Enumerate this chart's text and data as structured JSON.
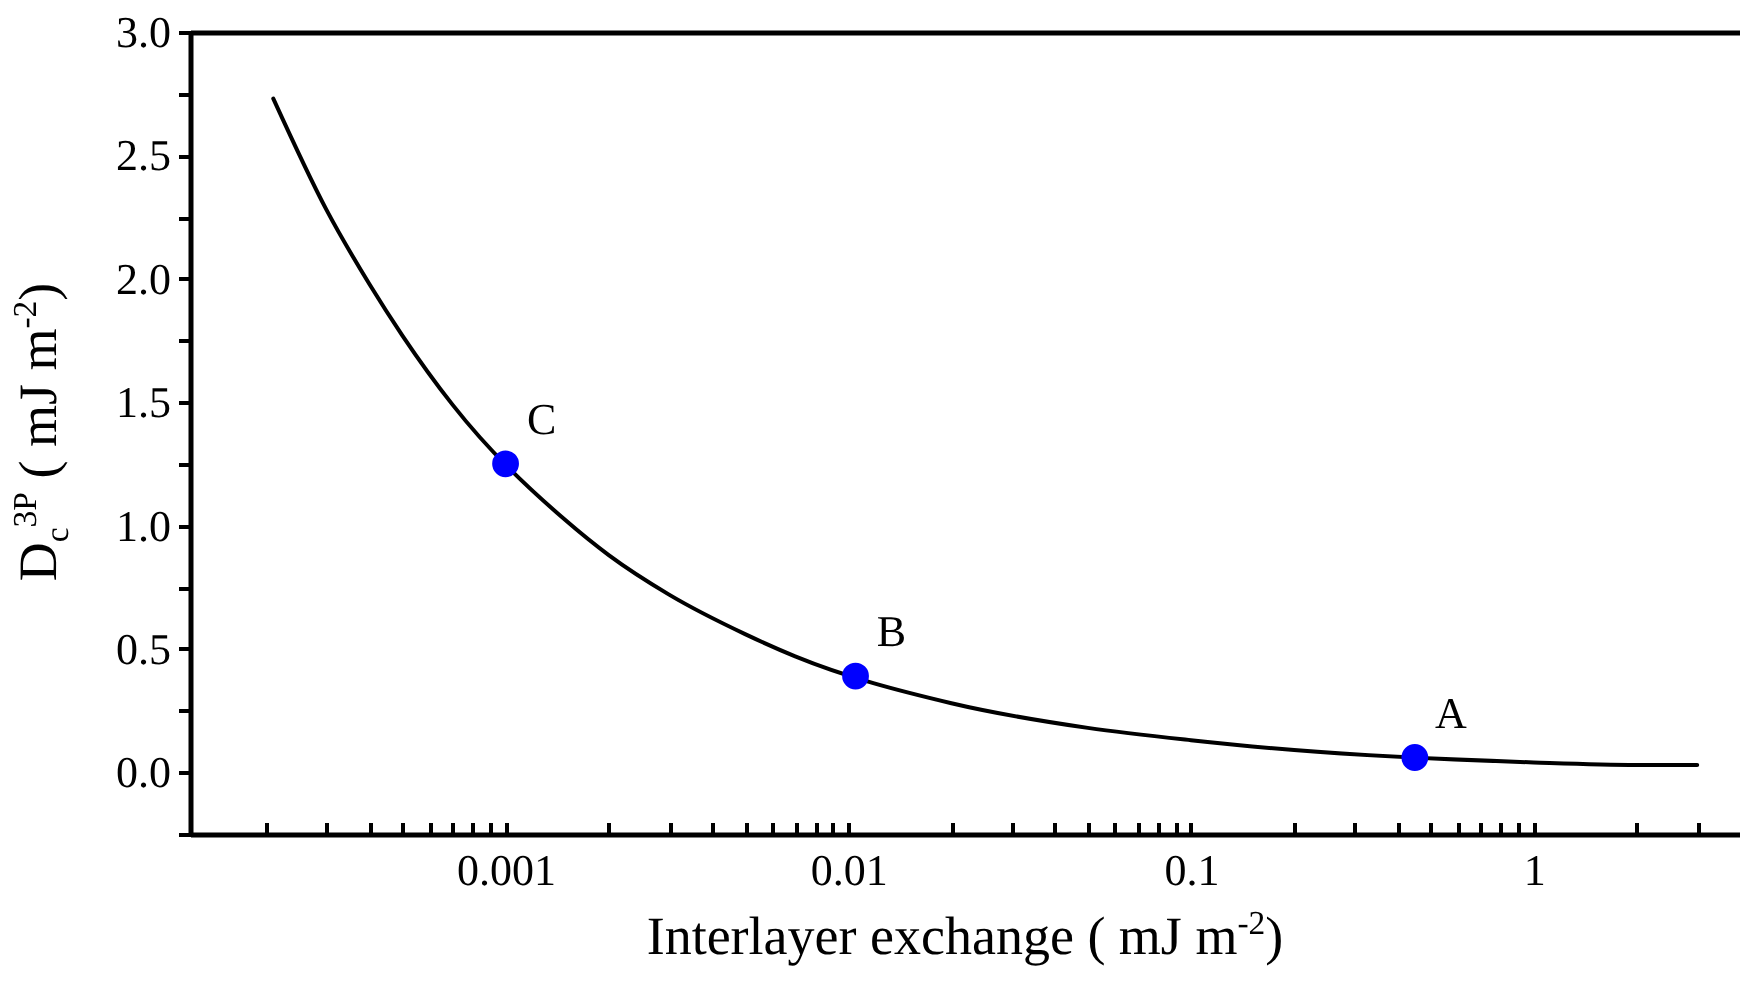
{
  "chart_data": {
    "type": "line",
    "xlabel": "Interlayer exchange ( mJ m$^{-2}$)",
    "ylabel": "D$_{c}$$^{3P}$ ( mJ m$^{-2}$)",
    "log": "x",
    "xlim": [
      0.00012,
      4
    ],
    "ylim": [
      -0.25,
      3.0
    ],
    "xticks": [
      {
        "value": 0.0002,
        "label": null
      },
      {
        "value": 0.0003,
        "label": null
      },
      {
        "value": 0.0004,
        "label": null
      },
      {
        "value": 0.0005,
        "label": null
      },
      {
        "value": 0.0006,
        "label": null
      },
      {
        "value": 0.0007,
        "label": null
      },
      {
        "value": 0.0008,
        "label": null
      },
      {
        "value": 0.0009,
        "label": null
      },
      0.001,
      {
        "value": 0.002,
        "label": null
      },
      {
        "value": 0.003,
        "label": null
      },
      {
        "value": 0.004,
        "label": null
      },
      {
        "value": 0.005,
        "label": null
      },
      {
        "value": 0.006,
        "label": null
      },
      {
        "value": 0.007,
        "label": null
      },
      {
        "value": 0.008,
        "label": null
      },
      {
        "value": 0.009,
        "label": null
      },
      0.01,
      {
        "value": 0.02,
        "label": null
      },
      {
        "value": 0.03,
        "label": null
      },
      {
        "value": 0.04,
        "label": null
      },
      {
        "value": 0.05,
        "label": null
      },
      {
        "value": 0.06,
        "label": null
      },
      {
        "value": 0.07,
        "label": null
      },
      {
        "value": 0.08,
        "label": null
      },
      {
        "value": 0.09,
        "label": null
      },
      0.1,
      {
        "value": 0.2,
        "label": null
      },
      {
        "value": 0.3,
        "label": null
      },
      {
        "value": 0.4,
        "label": null
      },
      {
        "value": 0.5,
        "label": null
      },
      {
        "value": 0.6,
        "label": null
      },
      {
        "value": 0.7,
        "label": null
      },
      {
        "value": 0.8,
        "label": null
      },
      {
        "value": 0.9,
        "label": null
      },
      1,
      {
        "value": 2,
        "label": null
      },
      {
        "value": 3,
        "label": null
      }
    ],
    "yticks": [
      {
        "value": -0.25,
        "label": null
      },
      {
        "value": 0,
        "label": "0.0"
      },
      {
        "value": 0.25,
        "label": null
      },
      0.5,
      {
        "value": 0.75,
        "label": null
      },
      {
        "value": 1,
        "label": "1.0"
      },
      {
        "value": 1.25,
        "label": null
      },
      1.5,
      {
        "value": 1.75,
        "label": null
      },
      {
        "value": 2,
        "label": "2.0"
      },
      {
        "value": 2.25,
        "label": null
      },
      2.5,
      {
        "value": 2.75,
        "label": null
      },
      {
        "value": 3,
        "label": "3.0"
      }
    ],
    "grid": false,
    "series": [
      {
        "color": "#000000",
        "marker": "none",
        "line_style": "solid",
        "x": [
          0.00021,
          0.0003,
          0.0004,
          0.0005,
          0.0007,
          0.0015,
          0.002,
          0.003,
          0.005,
          0.007,
          0.02,
          0.05,
          0.1,
          0.2,
          1,
          2,
          3
        ],
        "values": [
          2.73,
          2.28,
          1.98,
          1.77,
          1.49,
          1.02,
          0.88,
          0.72,
          0.56,
          0.47,
          0.28,
          0.18,
          0.13,
          0.09,
          0.04,
          0.03,
          0.03
        ]
      },
      {
        "type": "scatter",
        "color": "#0000ff",
        "marker": "circle",
        "x": [
          0.001,
          0.0105,
          0.45
        ],
        "values": [
          1.25,
          0.39,
          0.06
        ]
      }
    ],
    "annotations": [
      {
        "text": "C",
        "x": 0.001,
        "y": 1.25
      },
      {
        "text": "B",
        "x": 0.0105,
        "y": 0.39
      },
      {
        "text": "A",
        "x": 0.45,
        "y": 0.06
      }
    ]
  }
}
